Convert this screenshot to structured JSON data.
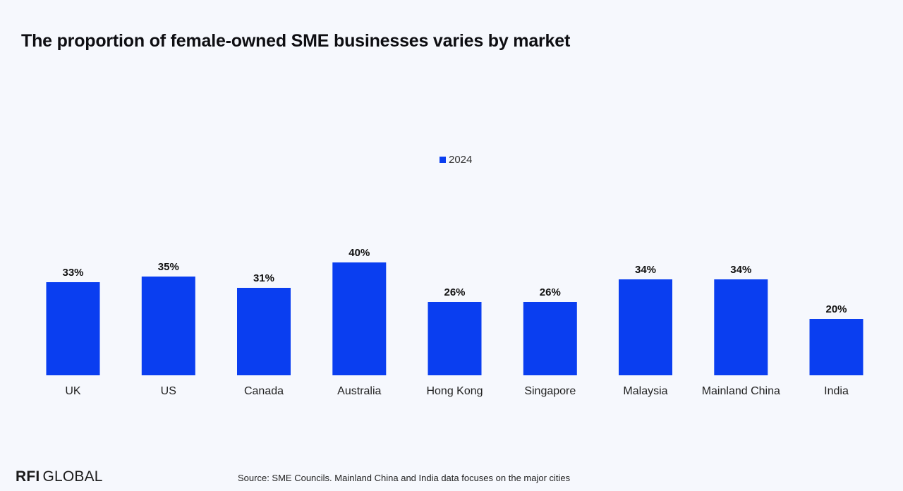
{
  "chart_data": {
    "type": "bar",
    "title": "The proportion of female-owned SME businesses varies by market",
    "categories": [
      "UK",
      "US",
      "Canada",
      "Australia",
      "Hong Kong",
      "Singapore",
      "Malaysia",
      "Mainland China",
      "India"
    ],
    "series": [
      {
        "name": "2024",
        "values": [
          33,
          35,
          31,
          40,
          26,
          26,
          34,
          34,
          20
        ],
        "labels": [
          "33%",
          "35%",
          "31%",
          "40%",
          "26%",
          "26%",
          "34%",
          "34%",
          "20%"
        ]
      }
    ],
    "xlabel": "",
    "ylabel": "",
    "ylim": [
      0,
      40
    ],
    "grid": false,
    "legend_position": "top-center"
  },
  "colors": {
    "bar": "#0a3ef0",
    "background": "#f6f8fd"
  },
  "footer": {
    "logo_strong": "RFI",
    "logo_light": "GLOBAL",
    "source": "Source: SME Councils. Mainland China and India data focuses on the major cities"
  }
}
